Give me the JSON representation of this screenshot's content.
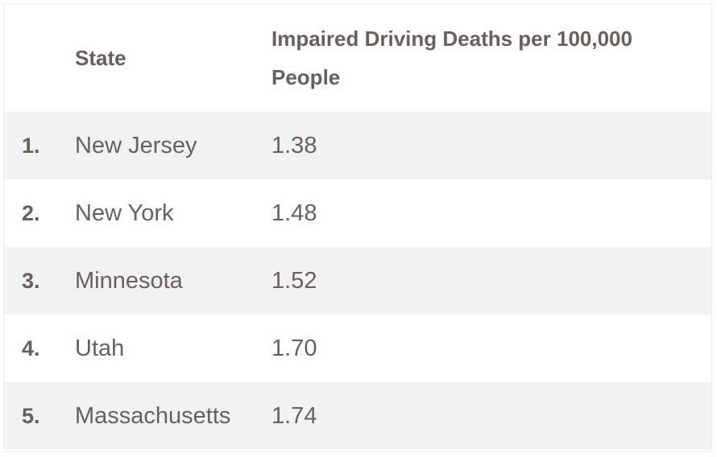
{
  "table": {
    "headers": {
      "rank": "",
      "state": "State",
      "value": "Impaired Driving Deaths per 100,000 People"
    },
    "rows": [
      {
        "rank": "1.",
        "state": "New Jersey",
        "value": "1.38"
      },
      {
        "rank": "2.",
        "state": "New York",
        "value": "1.48"
      },
      {
        "rank": "3.",
        "state": "Minnesota",
        "value": "1.52"
      },
      {
        "rank": "4.",
        "state": "Utah",
        "value": "1.70"
      },
      {
        "rank": "5.",
        "state": "Massachusetts",
        "value": "1.74"
      }
    ]
  },
  "colors": {
    "text": "#6b5f5c",
    "row_stripe": "#f2f2f2",
    "background": "#ffffff"
  }
}
